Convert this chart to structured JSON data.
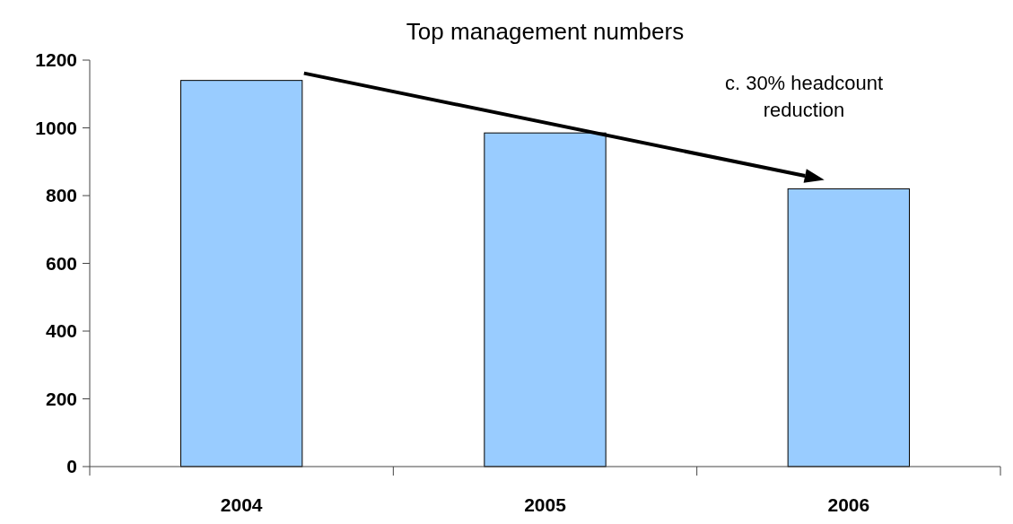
{
  "chart_data": {
    "type": "bar",
    "title": "Top management numbers",
    "categories": [
      "2004",
      "2005",
      "2006"
    ],
    "values": [
      1140,
      985,
      820
    ],
    "color": "#99ccff",
    "ylim": [
      0,
      1200
    ],
    "yticks": [
      0,
      200,
      400,
      600,
      800,
      1000,
      1200
    ],
    "grid": false,
    "annotations": [
      "c. 30% headcount reduction"
    ]
  }
}
